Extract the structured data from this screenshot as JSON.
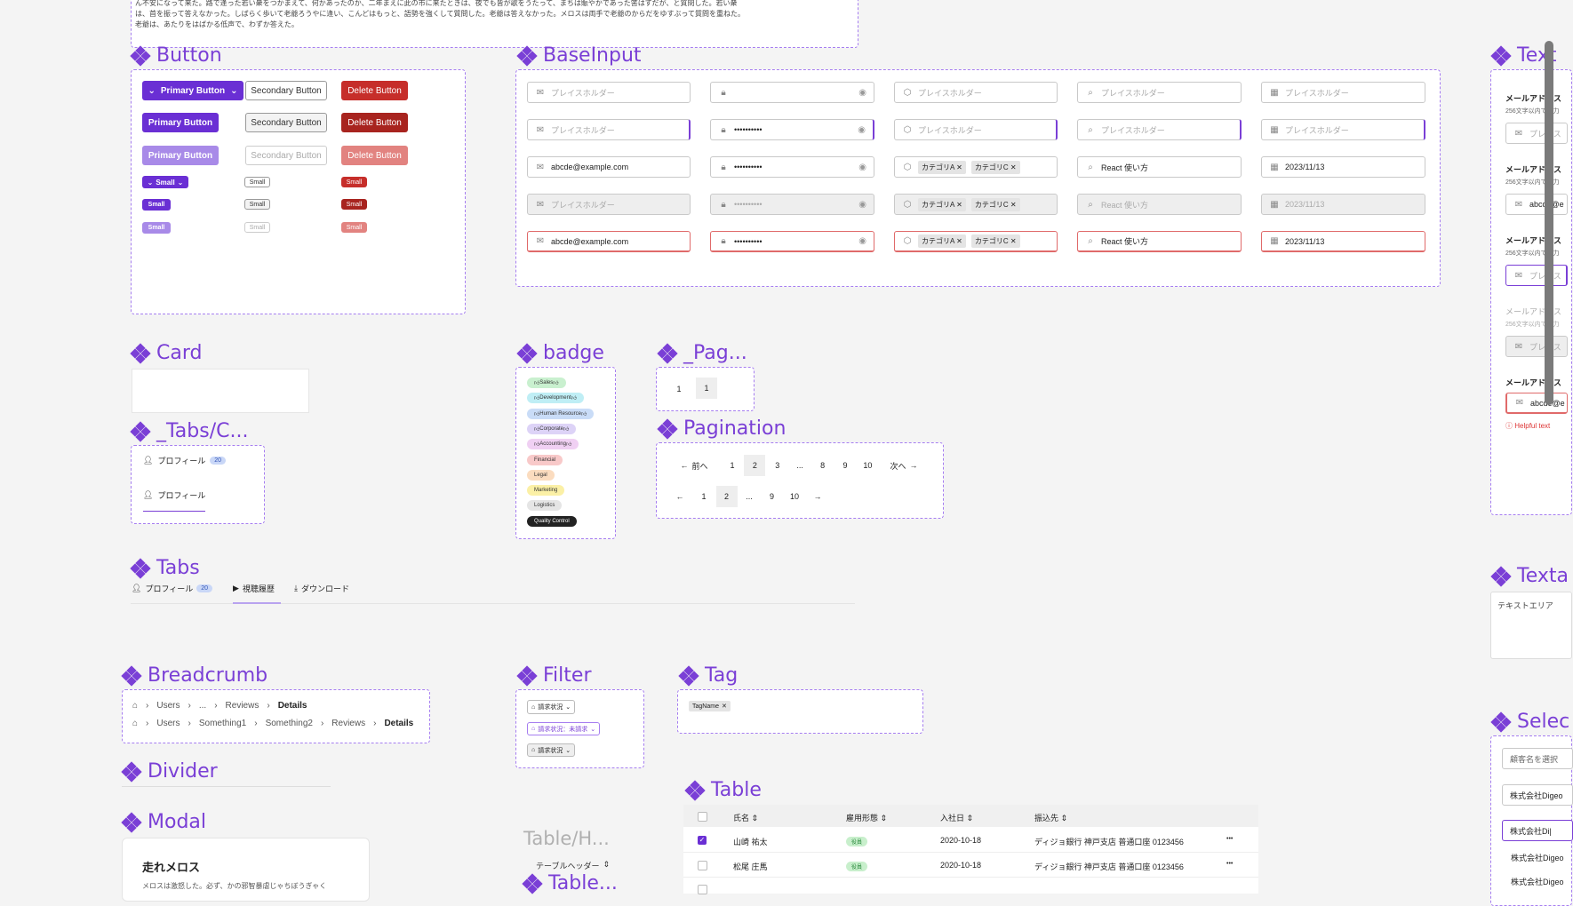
{
  "top_text": {
    "line1": "ん不安になって来た。路で逢った若い衆をつかまえて、何かあったのか、二年まえに此の市に来たときは、夜でも皆が歌をうたって、まちは賑やかであった筈はずだが、と質問した。若い衆",
    "line2": "は、首を振って答えなかった。しばらく歩いて老爺ろうやに逢い、こんどはもっと、語勢を強くして質問した。老爺は答えなかった。メロスは両手で老爺のからだをゆすぶって質問を重ねた。",
    "line3": "老爺は、あたりをはばかる低声で、わずか答えた。"
  },
  "sections": {
    "button": "Button",
    "baseinput": "BaseInput",
    "textfield": "Text",
    "card": "Card",
    "badge": "badge",
    "pag": "_Pag...",
    "tabsc": "_Tabs/C...",
    "pagination": "Pagination",
    "tabs": "Tabs",
    "texta": "Texta",
    "breadcrumb": "Breadcrumb",
    "filter": "Filter",
    "tag": "Tag",
    "select": "Selec",
    "divider": "Divider",
    "table": "Table",
    "modal": "Modal",
    "tableh": "Table/H...",
    "table2": "Table..."
  },
  "buttons": {
    "primary": "Primary Button",
    "secondary": "Secondary Button",
    "delete": "Delete Button",
    "small": "Small"
  },
  "inputs": {
    "placeholder": "プレイスホルダー",
    "email": "abcde@example.com",
    "password": "••••••••••",
    "cat_a": "カテゴリA",
    "cat_c": "カテゴリC",
    "search": "React 使い方",
    "date": "2023/11/13"
  },
  "textfield": {
    "label": "メールアドレス",
    "helper": "256文字以内で入力",
    "placeholder": "プレイス",
    "value": "abcde@e",
    "error": "Helpful text"
  },
  "badges": [
    "Sales",
    "Development",
    "Human Resource",
    "Corporate",
    "Accounting",
    "Financial",
    "Legal",
    "Marketing",
    "Logistics",
    "Quality Control"
  ],
  "badge_colors": [
    "#c9f0cf",
    "#bfeef5",
    "#c9dcf7",
    "#ddd3f7",
    "#f0d0f3",
    "#f8c9c9",
    "#fbdcbf",
    "#fbf0a6",
    "#e5e5e5",
    "#222222"
  ],
  "pag_small": [
    "1",
    "1"
  ],
  "tabsc": {
    "profile": "プロフィール",
    "count": "20"
  },
  "pagination": {
    "prev": "前へ",
    "next": "次へ",
    "row1": [
      "1",
      "2",
      "3",
      "...",
      "8",
      "9",
      "10"
    ],
    "row2": [
      "1",
      "2",
      "...",
      "9",
      "10"
    ]
  },
  "tabs": {
    "profile": "プロフィール",
    "count": "20",
    "history": "視聴履歴",
    "download": "ダウンロード"
  },
  "textarea": {
    "placeholder": "テキストエリア"
  },
  "breadcrumb": {
    "row1": [
      "Users",
      "...",
      "Reviews",
      "Details"
    ],
    "row2": [
      "Users",
      "Something1",
      "Something2",
      "Reviews",
      "Details"
    ]
  },
  "filter": {
    "label": "請求状況",
    "label_active": "請求状況：未請求"
  },
  "tag": {
    "name": "TagName"
  },
  "select": {
    "placeholder": "顧客名を選択",
    "value": "株式会社Digeo",
    "typing": "株式会社Di|",
    "option1": "株式会社Digeo",
    "option2": "株式会社Digeo"
  },
  "table": {
    "headers": [
      "氏名",
      "雇用形態",
      "入社日",
      "振込先"
    ],
    "rows": [
      {
        "name": "山崎 祐太",
        "type": "役員",
        "date": "2020-10-18",
        "bank": "ディジョ銀行 神戸支店 普通口座 0123456"
      },
      {
        "name": "松尾 庄馬",
        "type": "役員",
        "date": "2020-10-18",
        "bank": "ディジョ銀行 神戸支店 普通口座 0123456"
      }
    ]
  },
  "modal": {
    "title": "走れメロス",
    "body": "メロスは激怒した。必ず、かの邪智暴虐じゃちぼうぎゃく"
  },
  "tableh": {
    "label": "テーブルヘッダー"
  }
}
